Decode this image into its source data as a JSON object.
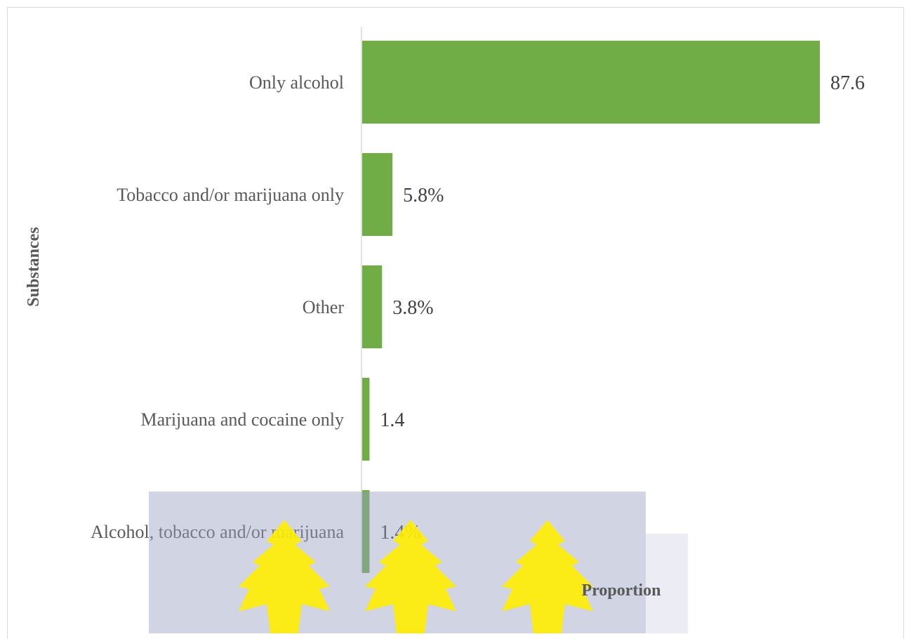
{
  "chart_data": {
    "type": "bar",
    "orientation": "horizontal",
    "categories": [
      "Only alcohol",
      "Tobacco and/or marijuana only",
      "Other",
      "Marijuana and cocaine only",
      "Alcohol, tobacco and/or marijuana"
    ],
    "values": [
      87.6,
      5.8,
      3.8,
      1.4,
      1.4
    ],
    "data_labels": [
      "87.6",
      "5.8%",
      "3.8%",
      "1.4",
      "1.4%"
    ],
    "xlabel": "Proportion",
    "ylabel": "Substances",
    "xlim": [
      0,
      100
    ],
    "grid": false,
    "legend": "none",
    "bar_color": "#70AD47"
  },
  "colors": {
    "watermark_gray": "#9aa0c0",
    "watermark_yellow": "#ffee00"
  }
}
